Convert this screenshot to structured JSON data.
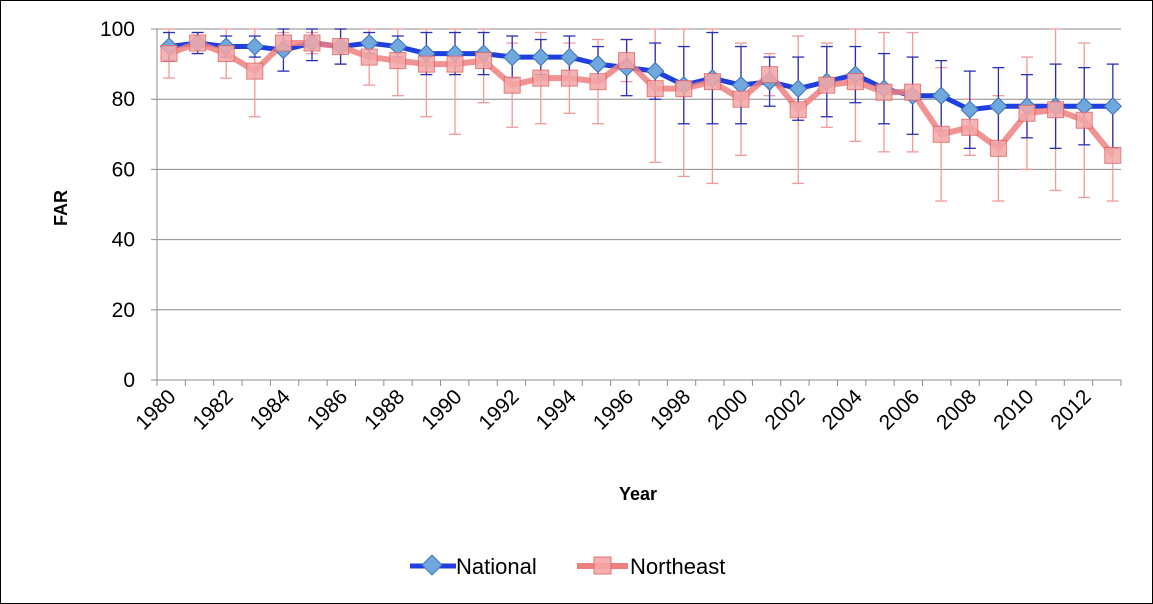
{
  "chart_data": {
    "type": "line",
    "title": "",
    "xlabel": "Year",
    "ylabel": "FAR",
    "ylim": [
      0,
      100
    ],
    "yticks": [
      0,
      20,
      40,
      60,
      80,
      100
    ],
    "xtick_labels": [
      "1980",
      "1982",
      "1984",
      "1986",
      "1988",
      "1990",
      "1992",
      "1994",
      "1996",
      "1998",
      "2000",
      "2002",
      "2004",
      "2006",
      "2008",
      "2010",
      "2012"
    ],
    "x": [
      1980,
      1981,
      1982,
      1983,
      1984,
      1985,
      1986,
      1987,
      1988,
      1989,
      1990,
      1991,
      1992,
      1993,
      1994,
      1995,
      1996,
      1997,
      1998,
      1999,
      2000,
      2001,
      2002,
      2003,
      2004,
      2005,
      2006,
      2007,
      2008,
      2009,
      2010,
      2011,
      2012,
      2013
    ],
    "grid": "horizontal",
    "legend": "bottom",
    "series": [
      {
        "name": "National",
        "color": "#1f3fe0",
        "marker": "diamond",
        "marker_color": "#6fa8dc",
        "values": [
          95,
          96,
          95,
          95,
          94,
          96,
          95,
          96,
          95,
          93,
          93,
          93,
          92,
          92,
          92,
          90,
          89,
          88,
          84,
          86,
          84,
          85,
          83,
          85,
          87,
          83,
          81,
          81,
          77,
          78,
          78,
          78,
          78,
          78
        ],
        "error": [
          4,
          3,
          3,
          3,
          6,
          5,
          5,
          3,
          3,
          6,
          6,
          6,
          6,
          5,
          6,
          5,
          8,
          8,
          11,
          13,
          11,
          7,
          9,
          10,
          8,
          10,
          11,
          10,
          11,
          11,
          9,
          12,
          11,
          12
        ]
      },
      {
        "name": "Northeast",
        "color": "#f08080",
        "marker": "square",
        "marker_color": "#f4a7a7",
        "values": [
          93,
          96,
          93,
          88,
          96,
          96,
          95,
          92,
          91,
          90,
          90,
          91,
          84,
          86,
          86,
          85,
          91,
          83,
          83,
          85,
          80,
          87,
          77,
          84,
          85,
          82,
          82,
          70,
          72,
          66,
          76,
          77,
          74,
          64
        ],
        "error": [
          7,
          3,
          7,
          13,
          3,
          3,
          5,
          8,
          10,
          15,
          20,
          12,
          12,
          13,
          10,
          12,
          6,
          21,
          25,
          29,
          16,
          6,
          21,
          12,
          17,
          17,
          17,
          19,
          8,
          15,
          16,
          23,
          22,
          13
        ]
      }
    ]
  }
}
